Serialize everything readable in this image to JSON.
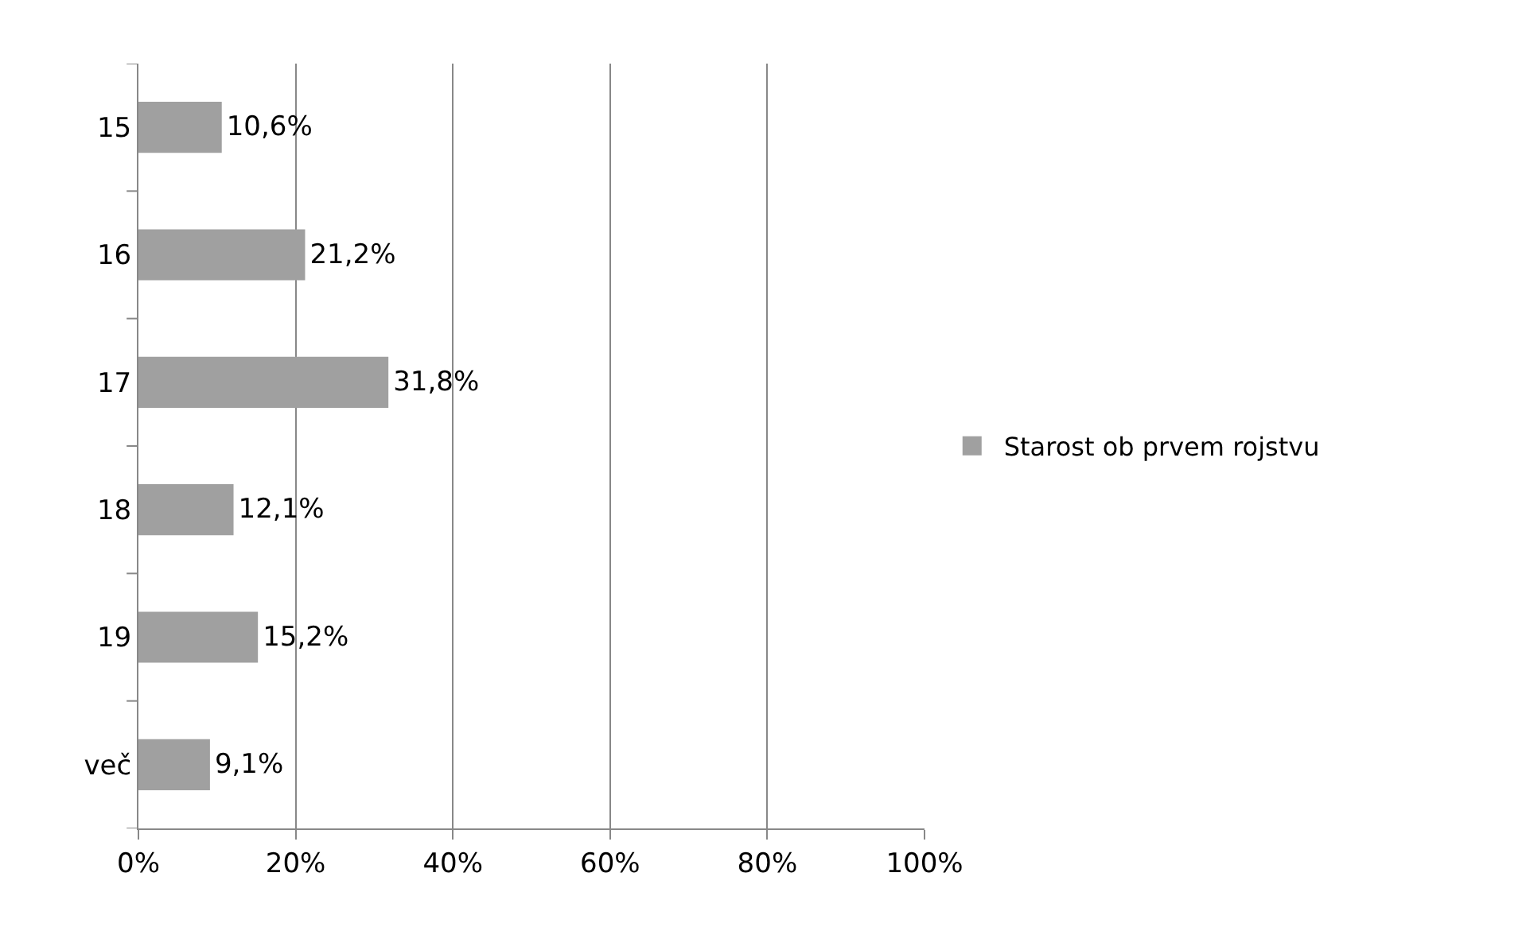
{
  "chart_data": {
    "type": "bar",
    "orientation": "horizontal",
    "categories": [
      "15",
      "16",
      "17",
      "18",
      "19",
      "več"
    ],
    "series": [
      {
        "name": "Starost ob prvem rojstvu",
        "color": "#a0a0a0",
        "values": [
          10.6,
          21.2,
          31.8,
          12.1,
          15.2,
          9.1
        ],
        "value_labels": [
          "10,6%",
          "21,2%",
          "31,8%",
          "12,1%",
          "15,2%",
          "9,1%"
        ]
      }
    ],
    "xlim": [
      0,
      100
    ],
    "xticks": [
      {
        "value": 0,
        "label": "0%"
      },
      {
        "value": 20,
        "label": "20%"
      },
      {
        "value": 40,
        "label": "40%"
      },
      {
        "value": 60,
        "label": "60%"
      },
      {
        "value": 80,
        "label": "80%"
      },
      {
        "value": 100,
        "label": "100%"
      }
    ],
    "grid": "x",
    "legend": "right"
  }
}
